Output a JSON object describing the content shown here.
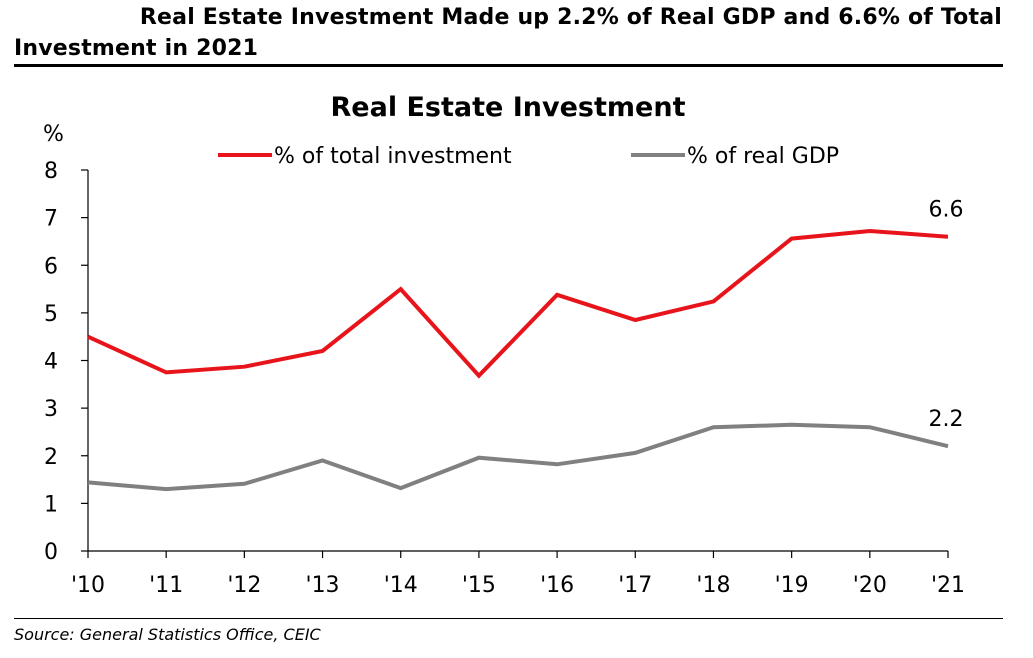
{
  "header": {
    "headline_line1": "Real Estate Investment Made up 2.2% of Real GDP and 6.6% of Total",
    "headline_line2": "Investment in 2021"
  },
  "footer": {
    "source": "Source: General Statistics Office, CEIC"
  },
  "chart_data": {
    "type": "line",
    "title": "Real Estate Investment",
    "ylabel": "%",
    "xlabel": "",
    "categories": [
      "'10",
      "'11",
      "'12",
      "'13",
      "'14",
      "'15",
      "'16",
      "'17",
      "'18",
      "'19",
      "'20",
      "'21"
    ],
    "ylim": [
      0,
      8
    ],
    "yticks": [
      "0",
      "1",
      "2",
      "3",
      "4",
      "5",
      "6",
      "7",
      "8"
    ],
    "grid": false,
    "legend": "top-center",
    "series": [
      {
        "name": "% of total investment",
        "color": "#e8141b",
        "values": [
          4.5,
          3.75,
          3.87,
          4.2,
          5.5,
          3.68,
          5.38,
          4.85,
          5.24,
          6.56,
          6.72,
          6.6
        ],
        "end_label": "6.6"
      },
      {
        "name": "% of real GDP",
        "color": "#808080",
        "values": [
          1.44,
          1.3,
          1.41,
          1.9,
          1.32,
          1.96,
          1.82,
          2.06,
          2.6,
          2.65,
          2.6,
          2.2
        ],
        "end_label": "2.2"
      }
    ]
  }
}
